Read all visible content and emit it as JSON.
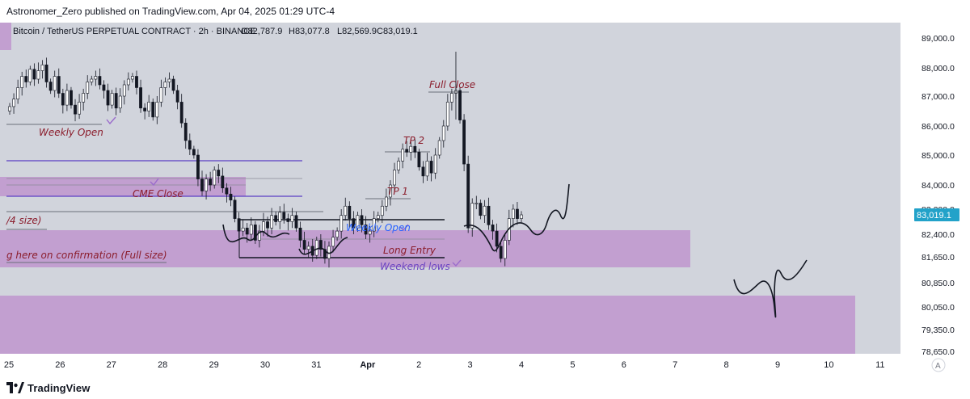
{
  "header": {
    "published_text": "Astronomer_Zero published on TradingView.com, Apr 04, 2025 01:29 UTC-4"
  },
  "footer": {
    "brand": "TradingView"
  },
  "legend": {
    "symbol": "Bitcoin / TetherUS PERPETUAL CONTRACT · 2h · BINANCE",
    "open": "O82,787.9",
    "high": "H83,077.8",
    "low": "L82,569.9",
    "close": "C83,019.1"
  },
  "price_badge": "83,019.1",
  "auto_scale_label": "A",
  "colors": {
    "chart_bg": "#d1d4dc",
    "zone_fill": "#c29fd0",
    "badge_bg": "#22a2c9",
    "annotation_red": "#8b1d2c",
    "annotation_purple": "#6b45c2",
    "annotation_blue": "#2962ff",
    "level_line_purple": "#5b3fc4"
  },
  "chart_data": {
    "type": "candlestick",
    "symbol": "Bitcoin / TetherUS PERPETUAL CONTRACT",
    "interval": "2h",
    "exchange": "BINANCE",
    "last_price": 83019.1,
    "y_ticks": [
      "89,000.0",
      "88,000.0",
      "87,000.0",
      "86,000.0",
      "85,000.0",
      "84,000.0",
      "83,200.0",
      "82,400.0",
      "81,650.0",
      "80,850.0",
      "80,050.0",
      "79,350.0",
      "78,650.0"
    ],
    "x_ticks": [
      "25",
      "26",
      "27",
      "28",
      "29",
      "30",
      "31",
      "Apr",
      "2",
      "3",
      "4",
      "5",
      "6",
      "7",
      "8",
      "9",
      "10",
      "11"
    ],
    "ohlc_closes": [
      86650,
      86900,
      87300,
      87700,
      87500,
      87950,
      87600,
      87900,
      88100,
      87500,
      87200,
      87700,
      87100,
      86700,
      87200,
      86700,
      86400,
      86800,
      87100,
      87500,
      87600,
      87700,
      87400,
      87200,
      86700,
      87100,
      86600,
      87000,
      87400,
      87600,
      87700,
      87300,
      86600,
      86500,
      86800,
      86300,
      86800,
      87300,
      87500,
      87600,
      87200,
      86800,
      86100,
      85500,
      85200,
      85000,
      84200,
      83800,
      84200,
      84000,
      84500,
      84300,
      83900,
      83700,
      83500,
      82900,
      82500,
      82600,
      82400,
      82700,
      82200,
      82500,
      82800,
      82600,
      83000,
      82800,
      83100,
      82900,
      82800,
      83000,
      82600,
      82200,
      81900,
      82000,
      81700,
      82200,
      81900,
      81600,
      82000,
      82300,
      82500,
      83000,
      83300,
      82900,
      82600,
      83000,
      82700,
      82400,
      82500,
      82900,
      83000,
      83300,
      83600,
      84000,
      84500,
      84800,
      85200,
      85100,
      85300,
      85100,
      84600,
      84300,
      84800,
      84400,
      85000,
      85500,
      86000,
      86800,
      87100,
      87200,
      86200,
      84700,
      82600,
      83400,
      83400,
      83000,
      83300,
      82700,
      82500,
      82000,
      81600,
      82200,
      82900,
      83200,
      82900,
      83019
    ],
    "annotations": [
      "Weekly Open",
      "CME Close",
      "/4 size)",
      "g here on confirmation (Full size)",
      "Full Close",
      "TP 2",
      "TP 1",
      "Weekly Open",
      "Long Entry",
      "Weekend lows"
    ]
  }
}
